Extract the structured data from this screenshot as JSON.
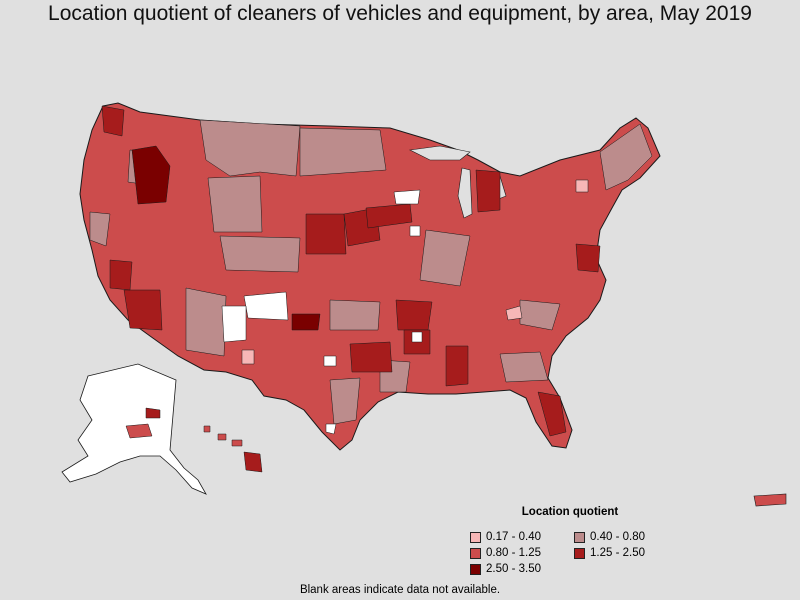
{
  "title": "Location quotient of cleaners of vehicles and equipment, by area, May 2019",
  "legend": {
    "title": "Location quotient",
    "items": [
      {
        "label": "0.17 - 0.40",
        "color": "#f7b7b7"
      },
      {
        "label": "0.40 - 0.80",
        "color": "#bc8c8c"
      },
      {
        "label": "0.80 - 1.25",
        "color": "#cc4c4c"
      },
      {
        "label": "1.25 - 2.50",
        "color": "#a61c1c"
      },
      {
        "label": "2.50 - 3.50",
        "color": "#7a0000"
      }
    ]
  },
  "footnote": "Blank areas indicate data not available.",
  "colors": {
    "background": "#e0e0e0",
    "no_data": "#ffffff",
    "border": "#1a1a1a"
  }
}
